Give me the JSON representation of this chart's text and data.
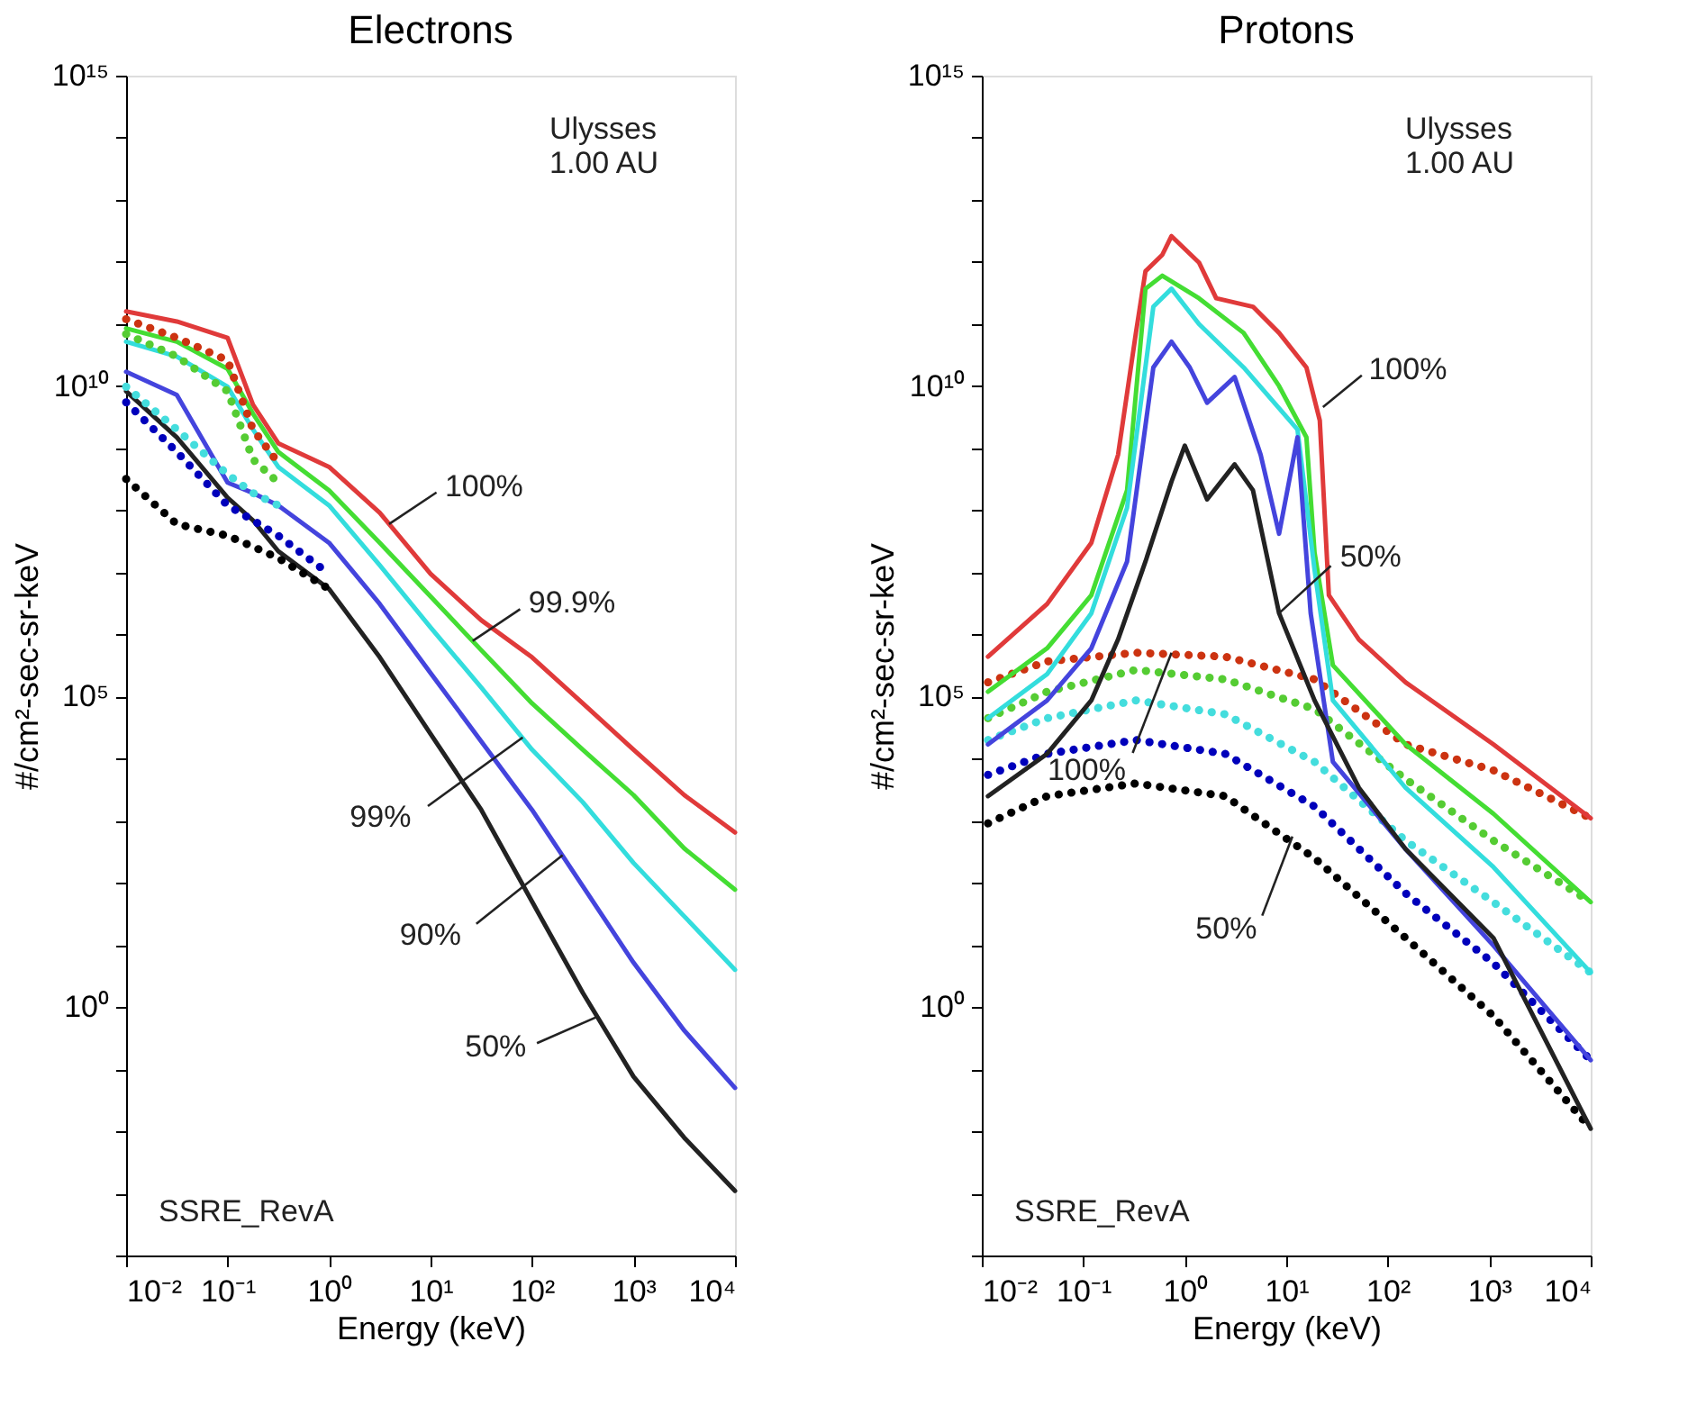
{
  "chart_data": [
    {
      "type": "line",
      "title": "Electrons",
      "xlabel": "Energy (keV)",
      "ylabel": "#/cm²-sec-sr-keV",
      "log": "xy",
      "grid": false,
      "xlim": [
        0.01,
        10000
      ],
      "ylim": [
        0.0001,
        1000000000000000.0
      ],
      "xticks": [
        {
          "value": 0.01,
          "label": "10⁻²"
        },
        {
          "value": 0.1,
          "label": "10⁻¹"
        },
        {
          "value": 1,
          "label": "10⁰"
        },
        {
          "value": 10,
          "label": "10¹"
        },
        {
          "value": 100,
          "label": "10²"
        },
        {
          "value": 1000,
          "label": "10³"
        },
        {
          "value": 10000,
          "label": "10⁴"
        }
      ],
      "yticks": [
        {
          "value": 0.0001,
          "label": null
        },
        {
          "value": 0.001,
          "label": null
        },
        {
          "value": 0.01,
          "label": null
        },
        {
          "value": 0.1,
          "label": null
        },
        {
          "value": 1,
          "label": "10⁰"
        },
        {
          "value": 10,
          "label": null
        },
        {
          "value": 100,
          "label": null
        },
        {
          "value": 1000,
          "label": null
        },
        {
          "value": 10000,
          "label": null
        },
        {
          "value": 100000,
          "label": "10⁵"
        },
        {
          "value": 1000000.0,
          "label": null
        },
        {
          "value": 10000000.0,
          "label": null
        },
        {
          "value": 100000000.0,
          "label": null
        },
        {
          "value": 1000000000.0,
          "label": null
        },
        {
          "value": 10000000000.0,
          "label": "10¹⁰"
        },
        {
          "value": 100000000000.0,
          "label": null
        },
        {
          "value": 1000000000000.0,
          "label": null
        },
        {
          "value": 10000000000000.0,
          "label": null
        },
        {
          "value": 100000000000000.0,
          "label": null
        },
        {
          "value": 1000000000000000.0,
          "label": "10¹⁵"
        }
      ],
      "x": [
        0.01,
        0.0316,
        0.1,
        0.178,
        0.316,
        1,
        3.16,
        10,
        31.6,
        100,
        316,
        1000,
        3160,
        10000
      ],
      "series": [
        {
          "color": "#e03a3a",
          "line_style": "solid",
          "values": [
            160000000000.0,
            110000000000.0,
            60000000000.0,
            5000000000.0,
            1200000000.0,
            500000000.0,
            91000000.0,
            9500000.0,
            1700000.0,
            430000.0,
            78000.0,
            14000.0,
            2600,
            650
          ]
        },
        {
          "color": "#44dd33",
          "line_style": "solid",
          "values": [
            85000000000.0,
            52000000000.0,
            19000000000.0,
            3600000000.0,
            870000000.0,
            210000000.0,
            30000000.0,
            4100000.0,
            560000.0,
            78000.0,
            14000.0,
            2600,
            360,
            78
          ]
        },
        {
          "color": "#33dddd",
          "line_style": "solid",
          "values": [
            52000000000.0,
            30000000000.0,
            9800000000.0,
            2000000000.0,
            500000000.0,
            120000000.0,
            13000000.0,
            1300000.0,
            140000.0,
            14000.0,
            2000,
            210,
            29,
            4
          ]
        },
        {
          "color": "#4444dd",
          "line_style": "solid",
          "values": [
            17000000000.0,
            7200000000.0,
            280000000.0,
            190000000.0,
            120000000.0,
            30000000.0,
            3100000.0,
            240000.0,
            19000.0,
            1500,
            89,
            5.2,
            0.42,
            0.05
          ]
        },
        {
          "color": "#222222",
          "line_style": "solid",
          "values": [
            8300000000.0,
            1500000000.0,
            160000000.0,
            69000000.0,
            22000000.0,
            5400000.0,
            430000.0,
            25000.0,
            1500,
            50,
            1.7,
            0.076,
            0.0079,
            0.0011
          ]
        },
        {
          "color": "#cc3311",
          "line_style": "dotted",
          "values": [
            120000000000.0,
            60000000000.0,
            26000000000.0,
            2000000000.0,
            580000000.0,
            null,
            null,
            null,
            null,
            null,
            null,
            null,
            null,
            null
          ]
        },
        {
          "color": "#55cc33",
          "line_style": "dotted",
          "values": [
            69000000000.0,
            30000000000.0,
            8300000000.0,
            660000000.0,
            280000000.0,
            null,
            null,
            null,
            null,
            null,
            null,
            null,
            null,
            null
          ]
        },
        {
          "color": "#44dddd",
          "line_style": "dotted",
          "values": [
            9800000000.0,
            2000000000.0,
            380000000.0,
            190000000.0,
            120000000.0,
            null,
            null,
            null,
            null,
            null,
            null,
            null,
            null,
            null
          ]
        },
        {
          "color": "#0000bb",
          "line_style": "dotted",
          "values": [
            5500000000.0,
            870000000.0,
            120000000.0,
            69000000.0,
            39000000.0,
            9500000.0,
            null,
            null,
            null,
            null,
            null,
            null,
            null,
            null
          ]
        },
        {
          "color": "#000000",
          "line_style": "dotted",
          "values": [
            320000000.0,
            60000000.0,
            39000000.0,
            26000000.0,
            17000000.0,
            5400000.0,
            null,
            null,
            null,
            null,
            null,
            null,
            null,
            null
          ]
        }
      ],
      "annotations": [
        "Ulysses\n1.00 AU",
        "SSRE_RevA",
        {
          "text": "100%",
          "x": 3.9,
          "y": 60000000.0
        },
        {
          "text": "99.9%",
          "x": 26,
          "y": 790000.0
        },
        {
          "text": "99%",
          "x": 81,
          "y": 22000.0
        },
        {
          "text": "90%",
          "x": 200,
          "y": 280
        },
        {
          "text": "50%",
          "x": 440,
          "y": 0.7
        }
      ]
    },
    {
      "type": "line",
      "title": "Protons",
      "xlabel": "Energy (keV)",
      "ylabel": "#/cm²-sec-sr-keV",
      "log": "xy",
      "grid": false,
      "xlim": [
        0.01,
        10000
      ],
      "ylim": [
        0.0001,
        1000000000000000.0
      ],
      "xticks": [
        {
          "value": 0.01,
          "label": "10⁻²"
        },
        {
          "value": 0.1,
          "label": "10⁻¹"
        },
        {
          "value": 1,
          "label": "10⁰"
        },
        {
          "value": 10,
          "label": "10¹"
        },
        {
          "value": 100,
          "label": "10²"
        },
        {
          "value": 1000,
          "label": "10³"
        },
        {
          "value": 10000,
          "label": "10⁴"
        }
      ],
      "yticks": [
        {
          "value": 0.0001,
          "label": null
        },
        {
          "value": 0.001,
          "label": null
        },
        {
          "value": 0.01,
          "label": null
        },
        {
          "value": 0.1,
          "label": null
        },
        {
          "value": 1,
          "label": "10⁰"
        },
        {
          "value": 10,
          "label": null
        },
        {
          "value": 100,
          "label": null
        },
        {
          "value": 1000,
          "label": null
        },
        {
          "value": 10000,
          "label": null
        },
        {
          "value": 100000,
          "label": "10⁵"
        },
        {
          "value": 1000000.0,
          "label": null
        },
        {
          "value": 10000000.0,
          "label": null
        },
        {
          "value": 100000000.0,
          "label": null
        },
        {
          "value": 1000000000.0,
          "label": null
        },
        {
          "value": 10000000000.0,
          "label": "10¹⁰"
        },
        {
          "value": 100000000000.0,
          "label": null
        },
        {
          "value": 1000000000000.0,
          "label": null
        },
        {
          "value": 10000000000000.0,
          "label": null
        },
        {
          "value": 100000000000000.0,
          "label": null
        },
        {
          "value": 1000000000000000.0,
          "label": "10¹⁵"
        }
      ],
      "x": [
        0.0115,
        0.044,
        0.33,
        2.5,
        19,
        150,
        1100,
        10000
      ],
      "series": [
        {
          "color": "#cc3311",
          "line_style": "dotted",
          "values": [
            170000.0,
            370000.0,
            510000.0,
            440000.0,
            190000.0,
            17000.0,
            6500,
            1100
          ]
        },
        {
          "color": "#55cc33",
          "line_style": "dotted",
          "values": [
            45000.0,
            120000.0,
            270000.0,
            190000.0,
            63000.0,
            4700,
            480,
            49
          ]
        },
        {
          "color": "#44dddd",
          "line_style": "dotted",
          "values": [
            20000.0,
            45000.0,
            87000.0,
            52000.0,
            8900,
            480,
            49,
            3.6
          ]
        },
        {
          "color": "#0000bb",
          "line_style": "dotted",
          "values": [
            5500,
            12000.0,
            20000.0,
            12000.0,
            1700,
            68,
            5.1,
            0.14
          ]
        },
        {
          "color": "#000000",
          "line_style": "dotted",
          "values": [
            910,
            2500,
            4000,
            2500,
            250,
            13,
            0.72,
            0.011
          ]
        },
        {
          "color": "#e03a3a",
          "line_style": "solid",
          "x": [
            0.0115,
            0.044,
            0.12,
            0.22,
            0.33,
            0.41,
            0.6,
            0.74,
            1.38,
            2.04,
            4.7,
            8.5,
            15.8,
            21.4,
            26.3,
            52,
            150,
            1100,
            10000
          ],
          "values": [
            440000.0,
            3100000.0,
            30000000.0,
            780000000.0,
            72000000000.0,
            710000000000.0,
            1300000000000.0,
            2600000000000.0,
            980000000000.0,
            260000000000.0,
            190000000000.0,
            72000000000.0,
            20000000000.0,
            2800000000.0,
            4300000.0,
            830000.0,
            170000.0,
            17000.0,
            1100
          ]
        },
        {
          "color": "#44dd33",
          "line_style": "solid",
          "x": [
            0.0115,
            0.044,
            0.12,
            0.27,
            0.41,
            0.6,
            1.38,
            3.8,
            8.5,
            15.8,
            19,
            28.8,
            150,
            1100,
            10000
          ],
          "values": [
            120000.0,
            600000.0,
            4300000.0,
            210000000.0,
            370000000000.0,
            600000000000.0,
            260000000000.0,
            72000000000.0,
            10000000000.0,
            1500000000.0,
            21000000.0,
            320000.0,
            17000.0,
            1300,
            49
          ]
        },
        {
          "color": "#33dddd",
          "line_style": "solid",
          "x": [
            0.0115,
            0.044,
            0.12,
            0.27,
            0.49,
            0.74,
            1.38,
            3.8,
            12.9,
            19,
            28.8,
            150,
            1100,
            10000
          ],
          "values": [
            45000.0,
            230000.0,
            2200000.0,
            110000000.0,
            190000000000.0,
            370000000000.0,
            100000000000.0,
            20000000000.0,
            2000000000.0,
            11000000.0,
            87000.0,
            3400,
            180,
            3.6
          ]
        },
        {
          "color": "#4444dd",
          "line_style": "solid",
          "x": [
            0.0115,
            0.044,
            0.12,
            0.27,
            0.49,
            0.74,
            1.12,
            1.66,
            3.1,
            5.6,
            8.5,
            12.9,
            17.4,
            28.8,
            150,
            1100,
            10000
          ],
          "values": [
            17000.0,
            87000.0,
            600000.0,
            15000000.0,
            20000000000.0,
            52000000000.0,
            20000000000.0,
            5400000000.0,
            14000000000.0,
            780000000.0,
            42000000.0,
            1500000000.0,
            2200000.0,
            8900,
            350,
            9.8,
            0.14
          ]
        },
        {
          "color": "#222222",
          "line_style": "solid",
          "x": [
            0.0115,
            0.044,
            0.12,
            0.22,
            0.41,
            0.74,
            1,
            1.66,
            3.1,
            4.7,
            8.5,
            19,
            52,
            150,
            1100,
            10000
          ],
          "values": [
            2500,
            12000.0,
            87000.0,
            830000.0,
            15000000.0,
            290000000.0,
            1100000000.0,
            150000000.0,
            550000000.0,
            210000000.0,
            2200000.0,
            87000.0,
            3400,
            350,
            13,
            0.011
          ]
        }
      ],
      "annotations": [
        "Ulysses\n1.00 AU",
        "SSRE_RevA",
        {
          "text": "100%",
          "x": 23,
          "y": 4600000000.0
        },
        {
          "text": "50%",
          "x": 8.5,
          "y": 2200000.0
        },
        {
          "text": "100%",
          "x": 0.74,
          "y": 510000.0
        },
        {
          "text": "50%",
          "x": 11.5,
          "y": 560
        }
      ]
    }
  ]
}
